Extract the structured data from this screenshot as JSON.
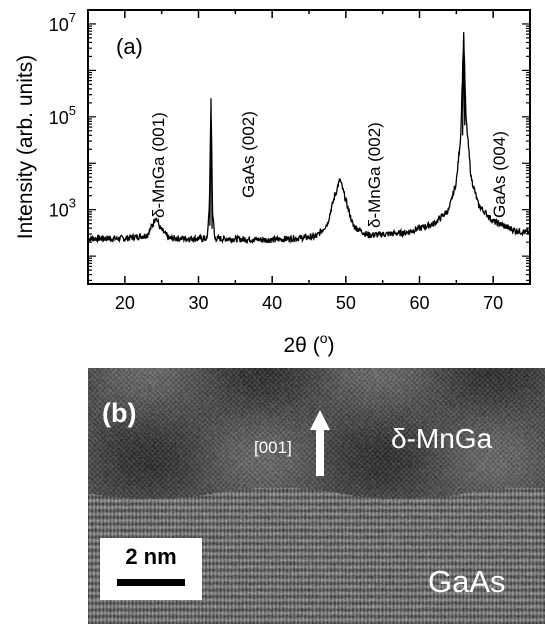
{
  "panel_a": {
    "label": "(a)",
    "ylabel": "Intensity (arb. units)",
    "xlabel_main": "2θ (",
    "xlabel_sup": "o",
    "xlabel_end": ")",
    "ytick_base": "10",
    "ytick_exponents": [
      "3",
      "5",
      "7"
    ],
    "peak_labels": [
      "δ-MnGa (001)",
      "GaAs (002)",
      "δ-MnGa (002)",
      "GaAs (004)"
    ]
  },
  "chart_data": {
    "type": "line",
    "xlabel": "2θ (°)",
    "ylabel": "Intensity (arb. units)",
    "xlim": [
      15,
      75
    ],
    "xticks": [
      20,
      30,
      40,
      50,
      60,
      70
    ],
    "yscale": "log",
    "ylim_log10": [
      1.4,
      7.3
    ],
    "yticks": [
      "10^3",
      "10^5",
      "10^7"
    ],
    "grid": false,
    "series": [
      {
        "x": [
          15,
          20,
          23,
          23.7,
          24.2,
          24.8,
          26,
          31.2,
          31.5,
          31.7,
          31.9,
          32.2,
          40,
          46,
          47.5,
          48.5,
          49.2,
          50,
          51,
          53,
          58,
          62,
          64,
          65,
          65.6,
          66,
          66.3,
          67,
          68,
          70,
          73,
          75
        ],
        "y_log10": [
          2.38,
          2.38,
          2.45,
          2.65,
          2.85,
          2.6,
          2.38,
          2.38,
          3.2,
          5.4,
          3.0,
          2.38,
          2.35,
          2.42,
          2.7,
          3.3,
          3.65,
          3.2,
          2.65,
          2.45,
          2.5,
          2.7,
          3.0,
          3.6,
          4.6,
          6.8,
          5.0,
          3.7,
          3.1,
          2.75,
          2.55,
          2.5
        ]
      }
    ],
    "annotations": [
      "δ-MnGa (001)",
      "GaAs (002)",
      "δ-MnGa (002)",
      "GaAs (004)"
    ]
  },
  "panel_b": {
    "label": "(b)",
    "direction": "[001]",
    "film": "δ-MnGa",
    "substrate": "GaAs",
    "scale": "2 nm"
  }
}
